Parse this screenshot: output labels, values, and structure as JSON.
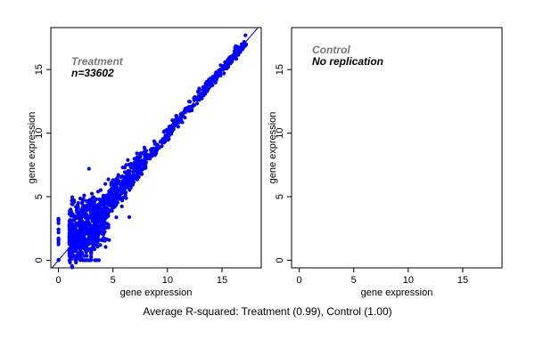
{
  "caption": "Average R-squared: Treatment (0.99), Control (1.00)",
  "colors": {
    "points": "#0000ff",
    "fit_line": "#0000ff",
    "frame": "#000000",
    "label_gray": "#777777",
    "label_black": "#000000"
  },
  "chart_data": [
    {
      "type": "scatter",
      "title": "Treatment",
      "annotation": "n=33602",
      "xlabel": "gene expression",
      "ylabel": "gene expression",
      "xlim": [
        -0.7,
        18.6
      ],
      "ylim": [
        -0.6,
        18.3
      ],
      "xticks": [
        "0",
        "5",
        "10",
        "15"
      ],
      "yticks": [
        "0",
        "5",
        "10",
        "15"
      ],
      "diagonal_line": true,
      "scatter_band": {
        "x_min": 1.0,
        "x_max": 17.2,
        "points_approx": 33602
      },
      "outliers": [
        [
          2.8,
          7.2
        ],
        [
          5.0,
          6.3
        ],
        [
          4.3,
          6.0
        ],
        [
          2.2,
          4.6
        ],
        [
          2.6,
          4.1
        ],
        [
          1.6,
          4.2
        ],
        [
          5.9,
          7.3
        ],
        [
          6.2,
          7.5
        ],
        [
          7.2,
          8.4
        ],
        [
          6.5,
          3.4
        ],
        [
          3.3,
          1.2
        ],
        [
          2.7,
          0.8
        ],
        [
          4.2,
          2.7
        ]
      ],
      "low_x_columns": [
        0,
        1,
        2,
        3
      ]
    },
    {
      "type": "scatter",
      "title": "Control",
      "annotation": "No replication",
      "xlabel": "gene expression",
      "ylabel": "gene expression",
      "xlim": [
        -0.7,
        18.6
      ],
      "ylim": [
        -0.6,
        18.3
      ],
      "xticks": [
        "0",
        "5",
        "10",
        "15"
      ],
      "yticks": [
        "0",
        "5",
        "10",
        "15"
      ],
      "diagonal_line": false
    }
  ]
}
